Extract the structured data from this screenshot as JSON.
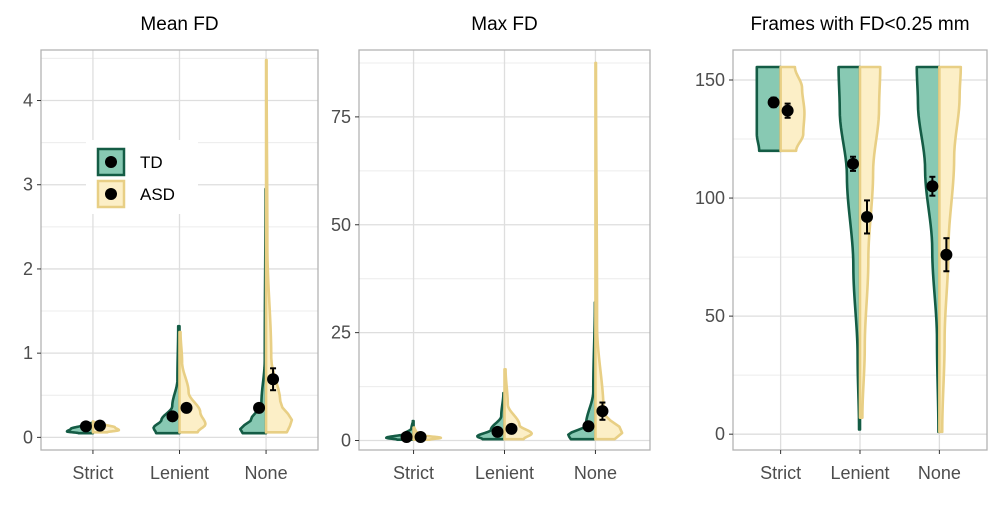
{
  "colors": {
    "td_fill": "#88c9b3",
    "td_line": "#145c45",
    "asd_fill": "#fcefc7",
    "asd_line": "#e8cf85",
    "grid": "#dedede",
    "panel_border": "#b3b3b3",
    "point": "#000000"
  },
  "legend": {
    "td": "TD",
    "asd": "ASD"
  },
  "chart_data": [
    {
      "type": "violin",
      "title": "Mean FD",
      "categories": [
        "Strict",
        "Lenient",
        "None"
      ],
      "ylim": [
        -0.15,
        4.6
      ],
      "yticks": [
        0,
        1,
        2,
        3,
        4
      ],
      "ytick_labels": [
        "0",
        "1",
        "2",
        "3",
        "4"
      ],
      "grid": true,
      "legend_position": "upper-left",
      "series": [
        {
          "name": "TD",
          "means": [
            0.13,
            0.25,
            0.35
          ],
          "errors": [
            0.01,
            0.02,
            0.03
          ],
          "ranges": [
            [
              0.05,
              0.18
            ],
            [
              0.05,
              1.32
            ],
            [
              0.05,
              2.95
            ]
          ]
        },
        {
          "name": "ASD",
          "means": [
            0.14,
            0.35,
            0.69
          ],
          "errors": [
            0.01,
            0.03,
            0.13
          ],
          "ranges": [
            [
              0.06,
              0.19
            ],
            [
              0.06,
              1.25
            ],
            [
              0.06,
              4.48
            ]
          ]
        }
      ]
    },
    {
      "type": "violin",
      "title": "Max FD",
      "categories": [
        "Strict",
        "Lenient",
        "None"
      ],
      "ylim": [
        -2.2,
        90.5
      ],
      "yticks": [
        0,
        25,
        50,
        75
      ],
      "ytick_labels": [
        "0",
        "25",
        "50",
        "75"
      ],
      "grid": true,
      "series": [
        {
          "name": "TD",
          "means": [
            0.8,
            2.0,
            3.3
          ],
          "errors": [
            0.1,
            0.3,
            0.6
          ],
          "ranges": [
            [
              0.2,
              4.5
            ],
            [
              0.3,
              11.0
            ],
            [
              0.3,
              32.0
            ]
          ]
        },
        {
          "name": "ASD",
          "means": [
            0.8,
            2.7,
            6.8
          ],
          "errors": [
            0.1,
            0.4,
            2.0
          ],
          "ranges": [
            [
              0.2,
              3.0
            ],
            [
              0.3,
              16.5
            ],
            [
              0.3,
              87.5
            ]
          ]
        }
      ]
    },
    {
      "type": "violin",
      "title": "Frames with FD<0.25 mm",
      "categories": [
        "Strict",
        "Lenient",
        "None"
      ],
      "ylim": [
        -6.7,
        162.7
      ],
      "yticks": [
        0,
        50,
        100,
        150
      ],
      "ytick_labels": [
        "0",
        "50",
        "100",
        "150"
      ],
      "grid": true,
      "series": [
        {
          "name": "TD",
          "means": [
            140.5,
            114.5,
            105
          ],
          "errors": [
            2.0,
            3.0,
            4.0
          ],
          "ranges": [
            [
              120,
              155.5
            ],
            [
              2,
              155.5
            ],
            [
              1,
              155.5
            ]
          ]
        },
        {
          "name": "ASD",
          "means": [
            137,
            92,
            76
          ],
          "errors": [
            3.0,
            7.0,
            7.0
          ],
          "ranges": [
            [
              120,
              155.5
            ],
            [
              7,
              155.5
            ],
            [
              1,
              155.5
            ]
          ]
        }
      ]
    }
  ]
}
